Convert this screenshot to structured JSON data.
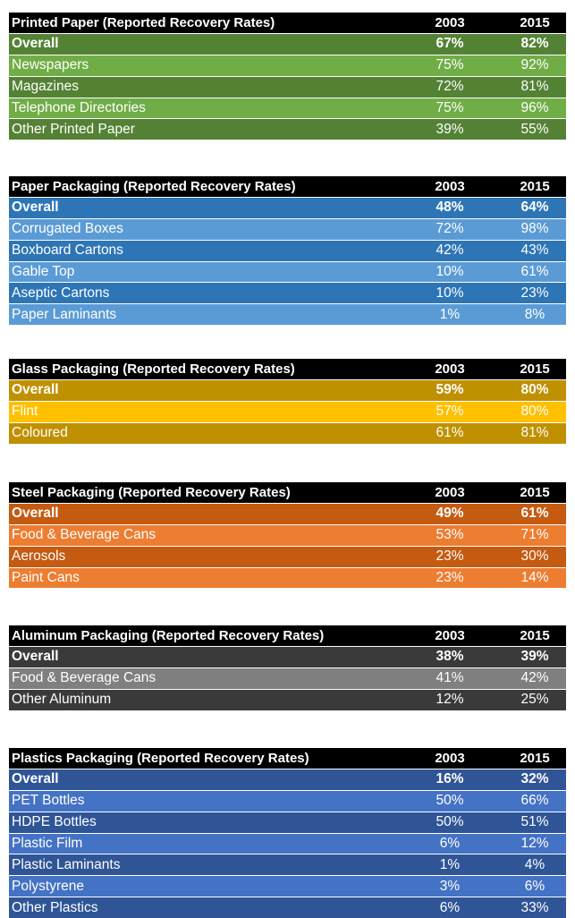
{
  "chart_data": [
    {
      "type": "table",
      "title": "Printed Paper (Reported Recovery Rates)",
      "columns": [
        "2003",
        "2015"
      ],
      "rows": [
        {
          "label": "Overall",
          "values": [
            "67%",
            "82%"
          ]
        },
        {
          "label": "Newspapers",
          "values": [
            "75%",
            "92%"
          ]
        },
        {
          "label": "Magazines",
          "values": [
            "72%",
            "81%"
          ]
        },
        {
          "label": "Telephone Directories",
          "values": [
            "75%",
            "96%"
          ]
        },
        {
          "label": "Other Printed Paper",
          "values": [
            "39%",
            "55%"
          ]
        }
      ],
      "colors": {
        "primary": "#548235",
        "secondary": "#70ad47"
      }
    },
    {
      "type": "table",
      "title": "Paper Packaging (Reported Recovery Rates)",
      "columns": [
        "2003",
        "2015"
      ],
      "rows": [
        {
          "label": "Overall",
          "values": [
            "48%",
            "64%"
          ]
        },
        {
          "label": "Corrugated Boxes",
          "values": [
            "72%",
            "98%"
          ]
        },
        {
          "label": "Boxboard Cartons",
          "values": [
            "42%",
            "43%"
          ]
        },
        {
          "label": "Gable Top",
          "values": [
            "10%",
            "61%"
          ]
        },
        {
          "label": "Aseptic Cartons",
          "values": [
            "10%",
            "23%"
          ]
        },
        {
          "label": "Paper Laminants",
          "values": [
            "1%",
            "8%"
          ]
        }
      ],
      "colors": {
        "primary": "#2e75b6",
        "secondary": "#5b9bd5"
      }
    },
    {
      "type": "table",
      "title": "Glass Packaging  (Reported Recovery Rates)",
      "columns": [
        "2003",
        "2015"
      ],
      "rows": [
        {
          "label": "Overall",
          "values": [
            "59%",
            "80%"
          ]
        },
        {
          "label": "Flint",
          "values": [
            "57%",
            "80%"
          ]
        },
        {
          "label": "Coloured",
          "values": [
            "61%",
            "81%"
          ]
        }
      ],
      "colors": {
        "primary": "#bf9000",
        "secondary": "#ffc000"
      }
    },
    {
      "type": "table",
      "title": "Steel Packaging (Reported Recovery Rates)",
      "columns": [
        "2003",
        "2015"
      ],
      "rows": [
        {
          "label": "Overall",
          "values": [
            "49%",
            "61%"
          ]
        },
        {
          "label": "Food & Beverage Cans",
          "values": [
            "53%",
            "71%"
          ]
        },
        {
          "label": "Aerosols",
          "values": [
            "23%",
            "30%"
          ]
        },
        {
          "label": "Paint Cans",
          "values": [
            "23%",
            "14%"
          ]
        }
      ],
      "colors": {
        "primary": "#c55a11",
        "secondary": "#ed7d31"
      }
    },
    {
      "type": "table",
      "title": "Aluminum Packaging (Reported Recovery Rates)",
      "columns": [
        "2003",
        "2015"
      ],
      "rows": [
        {
          "label": "Overall",
          "values": [
            "38%",
            "39%"
          ]
        },
        {
          "label": "Food & Beverage Cans",
          "values": [
            "41%",
            "42%"
          ]
        },
        {
          "label": "Other Aluminum",
          "values": [
            "12%",
            "25%"
          ]
        }
      ],
      "colors": {
        "primary": "#3a3a3a",
        "secondary": "#7f7f7f"
      }
    },
    {
      "type": "table",
      "title": "Plastics Packaging (Reported Recovery Rates)",
      "columns": [
        "2003",
        "2015"
      ],
      "rows": [
        {
          "label": "Overall",
          "values": [
            "16%",
            "32%"
          ]
        },
        {
          "label": "PET Bottles",
          "values": [
            "50%",
            "66%"
          ]
        },
        {
          "label": "HDPE Bottles",
          "values": [
            "50%",
            "51%"
          ]
        },
        {
          "label": "Plastic Film",
          "values": [
            "6%",
            "12%"
          ]
        },
        {
          "label": "Plastic Laminants",
          "values": [
            "1%",
            "4%"
          ]
        },
        {
          "label": "Polystyrene",
          "values": [
            "3%",
            "6%"
          ]
        },
        {
          "label": "Other Plastics",
          "values": [
            "6%",
            "33%"
          ]
        }
      ],
      "colors": {
        "primary": "#2f5597",
        "secondary": "#4472c4"
      }
    }
  ]
}
